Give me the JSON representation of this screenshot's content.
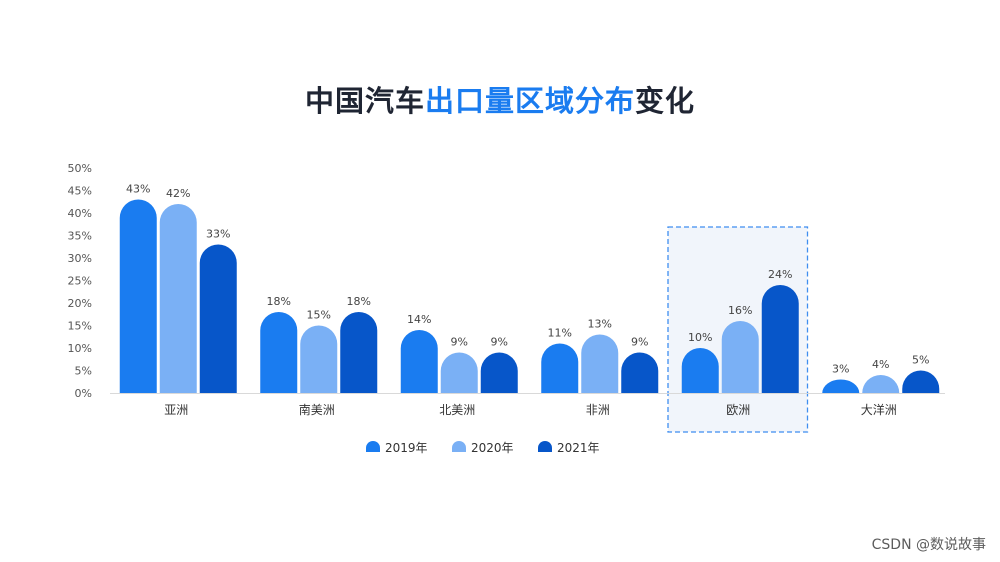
{
  "title": {
    "prefix": "中国汽车",
    "highlight": "出口量区域分布",
    "suffix": "变化"
  },
  "chart_data": {
    "type": "bar",
    "categories": [
      "亚洲",
      "南美洲",
      "北美洲",
      "非洲",
      "欧洲",
      "大洋洲"
    ],
    "series": [
      {
        "name": "2019年",
        "values": [
          43,
          18,
          14,
          11,
          10,
          3
        ],
        "color": "#1a7cf0"
      },
      {
        "name": "2020年",
        "values": [
          42,
          15,
          9,
          13,
          16,
          4
        ],
        "color": "#7ab0f5"
      },
      {
        "name": "2021年",
        "values": [
          33,
          18,
          9,
          9,
          24,
          5
        ],
        "color": "#0756c9"
      }
    ],
    "value_suffix": "%",
    "yticks": [
      "0%",
      "5%",
      "10%",
      "15%",
      "20%",
      "25%",
      "30%",
      "35%",
      "40%",
      "45%",
      "50%"
    ],
    "ylim": [
      0,
      50
    ],
    "highlighted_category": "欧洲",
    "legend_position": "bottom"
  },
  "watermark": "CSDN @数说故事"
}
